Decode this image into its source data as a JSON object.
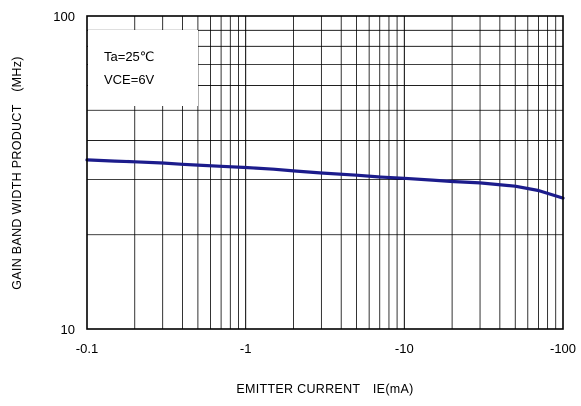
{
  "chart_data": {
    "type": "line",
    "xlabel": "EMITTER CURRENT　IE(mA)",
    "ylabel": "GAIN BAND WIDTH PRODUCT　(MHz)",
    "x_scale": "log",
    "y_scale": "log",
    "xlim": [
      -0.1,
      -100
    ],
    "ylim": [
      10,
      100
    ],
    "x_ticks": [
      "-0.1",
      "-1",
      "-10",
      "-100"
    ],
    "y_ticks": [
      "10",
      "100"
    ],
    "grid": true,
    "annotations": [
      "Ta=25℃",
      "VCE=6V"
    ],
    "series": [
      {
        "color": "#1c1c8c",
        "x": [
          -0.1,
          -0.15,
          -0.2,
          -0.3,
          -0.4,
          -0.5,
          -0.7,
          -1,
          -1.5,
          -2,
          -3,
          -5,
          -7,
          -10,
          -15,
          -20,
          -30,
          -50,
          -70,
          -100
        ],
        "y": [
          34.7,
          34.4,
          34.2,
          33.9,
          33.6,
          33.4,
          33.1,
          32.8,
          32.4,
          32.0,
          31.5,
          31.0,
          30.6,
          30.3,
          29.9,
          29.6,
          29.3,
          28.6,
          27.7,
          26.2
        ]
      }
    ]
  }
}
